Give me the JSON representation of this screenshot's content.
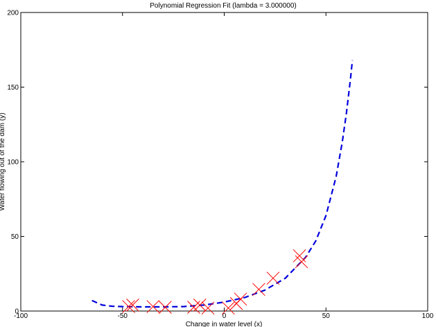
{
  "chart_data": {
    "type": "scatter",
    "title": "Polynomial Regression Fit (lambda = 3.000000)",
    "xlabel": "Change in water level (x)",
    "ylabel": "Water flowing out of the dam (y)",
    "xlim": [
      -100,
      100
    ],
    "ylim": [
      0,
      200
    ],
    "xticks": [
      -100,
      -50,
      0,
      50,
      100
    ],
    "yticks": [
      0,
      50,
      100,
      150,
      200
    ],
    "grid": false,
    "series": [
      {
        "kind": "scatter",
        "marker": "x",
        "color": "#ff0000",
        "points": [
          [
            -47,
            3
          ],
          [
            -45,
            4
          ],
          [
            -35,
            3
          ],
          [
            -29,
            2.5
          ],
          [
            -15,
            2.5
          ],
          [
            -12,
            4
          ],
          [
            -8,
            2
          ],
          [
            2,
            2
          ],
          [
            6,
            5
          ],
          [
            8,
            8
          ],
          [
            17,
            14.5
          ],
          [
            24,
            22
          ],
          [
            37,
            37
          ],
          [
            38,
            33
          ]
        ]
      },
      {
        "kind": "line",
        "style": "dashed",
        "color": "#0000dd",
        "points": [
          [
            -65,
            7
          ],
          [
            -60,
            4
          ],
          [
            -55,
            3.2
          ],
          [
            -50,
            3
          ],
          [
            -40,
            2.8
          ],
          [
            -30,
            2.8
          ],
          [
            -20,
            3
          ],
          [
            -10,
            4
          ],
          [
            0,
            6
          ],
          [
            10,
            9
          ],
          [
            20,
            14
          ],
          [
            30,
            22
          ],
          [
            40,
            36
          ],
          [
            45,
            47
          ],
          [
            50,
            64
          ],
          [
            55,
            90
          ],
          [
            58,
            113
          ],
          [
            60,
            132
          ],
          [
            62,
            155
          ],
          [
            63,
            168
          ]
        ]
      }
    ]
  }
}
